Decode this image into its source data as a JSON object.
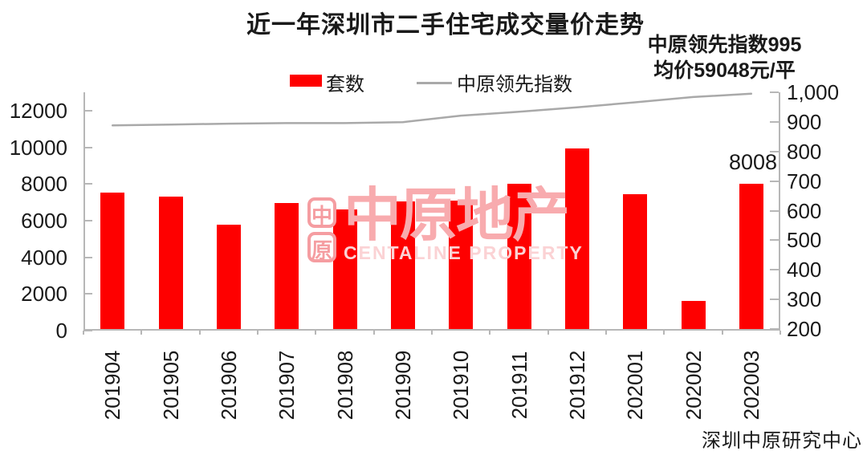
{
  "title": "近一年深圳市二手住宅成交量价走势",
  "annotation": {
    "line1": "中原领先指数995",
    "line2": "均价59048元/平"
  },
  "legend": {
    "bar_label": "套数",
    "line_label": "中原领先指数"
  },
  "footer": {
    "source": "深圳中原研究中心"
  },
  "watermark": {
    "seal_top": "中",
    "seal_bottom": "原",
    "text": "中原地产",
    "subtext": "CENTALINE PROPERTY"
  },
  "colors": {
    "bar": "#fe0000",
    "line": "#a9a9a9",
    "axis": "#b7b7b7",
    "text": "#1a1a1a",
    "watermark_pink": "#f8abae",
    "watermark_light_pink": "#fbd2d4"
  },
  "chart_data": {
    "type": "bar",
    "combo": "bar+line",
    "title": "近一年深圳市二手住宅成交量价走势",
    "categories": [
      "201904",
      "201905",
      "201906",
      "201907",
      "201908",
      "201909",
      "201910",
      "201911",
      "201912",
      "202001",
      "202002",
      "202003"
    ],
    "series": [
      {
        "name": "套数",
        "type": "bar",
        "axis": "left",
        "color": "#fe0000",
        "values": [
          7550,
          7330,
          5780,
          6980,
          6630,
          7060,
          7090,
          8000,
          9950,
          7460,
          1620,
          8008
        ]
      },
      {
        "name": "中原领先指数",
        "type": "line",
        "axis": "right",
        "color": "#a9a9a9",
        "values": [
          888,
          891,
          894,
          896,
          896,
          899,
          921,
          934,
          949,
          966,
          984,
          995
        ]
      }
    ],
    "bar_label": {
      "category": "202003",
      "text": "8008"
    },
    "left_axis": {
      "min": 0,
      "max": 12000,
      "step": 2000,
      "ticks": [
        0,
        2000,
        4000,
        6000,
        8000,
        10000,
        12000
      ]
    },
    "right_axis": {
      "min": 200,
      "max": 1000,
      "step": 100,
      "tick_labels": [
        "200",
        "300",
        "400",
        "500",
        "600",
        "700",
        "800",
        "900",
        "1,000"
      ]
    },
    "grid": false,
    "legend_position": "top",
    "xlabel": "",
    "ylabel_left": "套数",
    "ylabel_right": "中原领先指数"
  }
}
